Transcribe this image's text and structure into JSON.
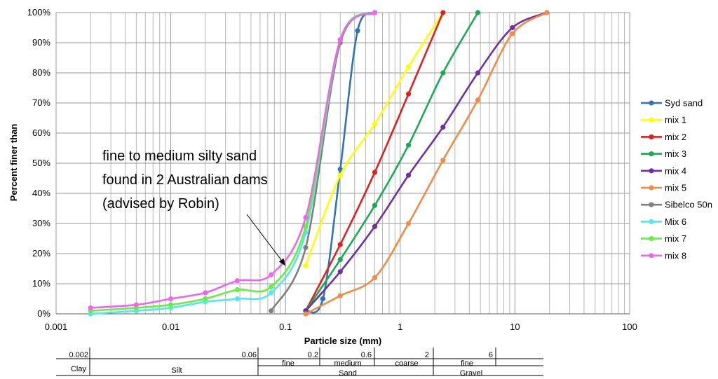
{
  "chart_data": {
    "type": "line",
    "xlabel": "Particle size (mm)",
    "ylabel": "Percent finer than",
    "x_scale": "log",
    "xlim": [
      0.001,
      100
    ],
    "ylim": [
      0,
      100
    ],
    "x_ticks": [
      "0.001",
      "0.01",
      "0.1",
      "1",
      "10",
      "100"
    ],
    "y_ticks": [
      "0%",
      "10%",
      "20%",
      "30%",
      "40%",
      "50%",
      "60%",
      "70%",
      "80%",
      "90%",
      "100%"
    ],
    "grid": true,
    "legend_position": "right",
    "annotation": {
      "lines": [
        "fine to medium silty sand",
        "found in 2 Australian dams",
        "(advised by Robin)"
      ],
      "points_to": [
        0.1,
        16
      ]
    },
    "series": [
      {
        "name": "Syd sand",
        "color": "#2e75b6",
        "marker": true,
        "points": [
          [
            0.15,
            1
          ],
          [
            0.212,
            5
          ],
          [
            0.3,
            48
          ],
          [
            0.425,
            94
          ],
          [
            0.6,
            100
          ]
        ]
      },
      {
        "name": "mix 1",
        "color": "#ffff00",
        "marker": true,
        "points": [
          [
            0.15,
            16
          ],
          [
            0.3,
            46
          ],
          [
            0.6,
            63
          ],
          [
            1.18,
            82
          ],
          [
            2.36,
            100
          ]
        ]
      },
      {
        "name": "mix 2",
        "color": "#e02020",
        "marker": true,
        "points": [
          [
            0.15,
            1
          ],
          [
            0.3,
            23
          ],
          [
            0.6,
            47
          ],
          [
            1.18,
            73
          ],
          [
            2.36,
            100
          ]
        ]
      },
      {
        "name": "mix 3",
        "color": "#1aaa55",
        "marker": true,
        "points": [
          [
            0.15,
            1
          ],
          [
            0.3,
            18
          ],
          [
            0.6,
            36
          ],
          [
            1.18,
            56
          ],
          [
            2.36,
            80
          ],
          [
            4.75,
            100
          ]
        ]
      },
      {
        "name": "mix 4",
        "color": "#7030a0",
        "marker": true,
        "points": [
          [
            0.15,
            1
          ],
          [
            0.3,
            14
          ],
          [
            0.6,
            29
          ],
          [
            1.18,
            46
          ],
          [
            2.36,
            62
          ],
          [
            4.75,
            80
          ],
          [
            9.5,
            95
          ],
          [
            19,
            100
          ]
        ]
      },
      {
        "name": "mix 5",
        "color": "#f08c46",
        "marker": true,
        "points": [
          [
            0.15,
            0
          ],
          [
            0.3,
            6
          ],
          [
            0.6,
            12
          ],
          [
            1.18,
            30
          ],
          [
            2.36,
            51
          ],
          [
            4.75,
            71
          ],
          [
            9.5,
            93
          ],
          [
            19,
            100
          ]
        ]
      },
      {
        "name": "Sibelco 50n",
        "color": "#808080",
        "marker": true,
        "points": [
          [
            0.075,
            1
          ],
          [
            0.15,
            22
          ],
          [
            0.3,
            90
          ],
          [
            0.6,
            100
          ]
        ]
      },
      {
        "name": "Mix 6",
        "color": "#55e6f0",
        "marker": true,
        "points": [
          [
            0.002,
            0
          ],
          [
            0.005,
            1
          ],
          [
            0.01,
            2
          ],
          [
            0.02,
            4
          ],
          [
            0.038,
            5
          ],
          [
            0.075,
            7
          ],
          [
            0.15,
            27
          ],
          [
            0.3,
            91
          ],
          [
            0.6,
            100
          ]
        ]
      },
      {
        "name": "mix 7",
        "color": "#66ee44",
        "marker": true,
        "points": [
          [
            0.002,
            1
          ],
          [
            0.005,
            2
          ],
          [
            0.01,
            3
          ],
          [
            0.02,
            5
          ],
          [
            0.038,
            8
          ],
          [
            0.075,
            9
          ],
          [
            0.15,
            29
          ],
          [
            0.3,
            91
          ],
          [
            0.6,
            100
          ]
        ]
      },
      {
        "name": "mix 8",
        "color": "#ee66ee",
        "marker": true,
        "points": [
          [
            0.002,
            2
          ],
          [
            0.005,
            3
          ],
          [
            0.01,
            5
          ],
          [
            0.02,
            7
          ],
          [
            0.038,
            11
          ],
          [
            0.075,
            13
          ],
          [
            0.15,
            32
          ],
          [
            0.3,
            91
          ],
          [
            0.6,
            100
          ]
        ]
      }
    ],
    "soil_scale": {
      "boundaries": [
        "0.002",
        "0.06",
        "0.2",
        "0.6",
        "2",
        "6"
      ],
      "subclasses": [
        "fine",
        "medium",
        "coarse",
        "fine"
      ],
      "classes": [
        "Clay",
        "Silt",
        "Sand",
        "Gravel"
      ]
    }
  }
}
